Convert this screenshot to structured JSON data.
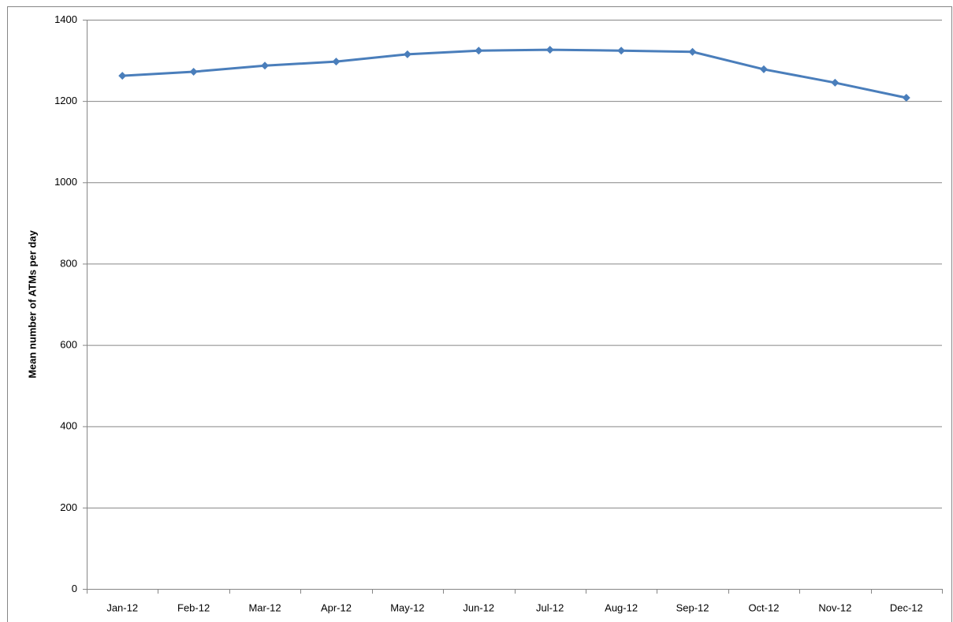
{
  "chart_data": {
    "type": "line",
    "y_label": "Mean number of ATMs per day",
    "categories": [
      "Jan-12",
      "Feb-12",
      "Mar-12",
      "Apr-12",
      "May-12",
      "Jun-12",
      "Jul-12",
      "Aug-12",
      "Sep-12",
      "Oct-12",
      "Nov-12",
      "Dec-12"
    ],
    "values": [
      1262,
      1272,
      1287,
      1297,
      1315,
      1324,
      1326,
      1324,
      1321,
      1278,
      1245,
      1208
    ],
    "color": "#4a7ebb",
    "ylim": [
      0,
      1400
    ],
    "yticks": [
      0,
      200,
      400,
      600,
      800,
      1000,
      1200,
      1400
    ],
    "grid": true
  }
}
